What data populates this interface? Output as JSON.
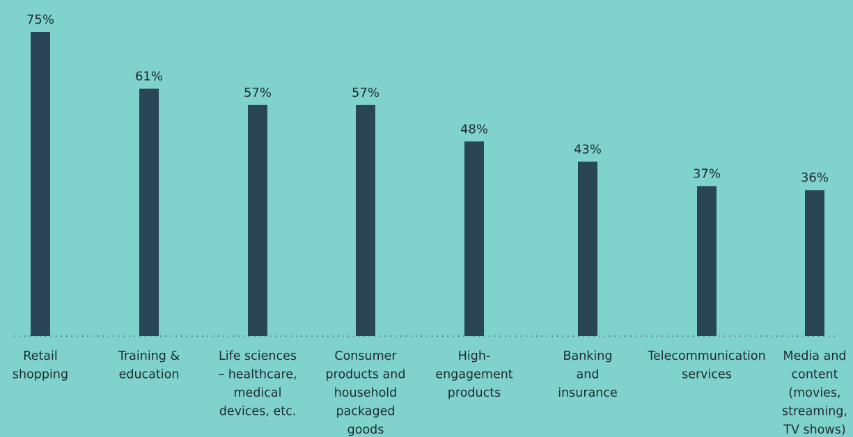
{
  "colors": {
    "background": "#80D3CD",
    "bar": "#2A4555",
    "text": "#1E2A30"
  },
  "chart_data": {
    "type": "bar",
    "title": "",
    "xlabel": "",
    "ylabel": "",
    "ylim": [
      0,
      75
    ],
    "grid": false,
    "legend": "none",
    "categories": [
      [
        "Retail",
        "shopping"
      ],
      [
        "Training &",
        "education"
      ],
      [
        "Life sciences",
        "– healthcare,",
        "medical",
        "devices, etc."
      ],
      [
        "Consumer",
        "products and",
        "household",
        "packaged",
        "goods"
      ],
      [
        "High-",
        "engagement",
        "products"
      ],
      [
        "Banking",
        "and",
        "insurance"
      ],
      [
        "Telecommunication",
        "services"
      ],
      [
        "Media and",
        "content",
        "(movies,",
        "streaming,",
        "TV shows)"
      ]
    ],
    "values": [
      75,
      61,
      57,
      57,
      48,
      43,
      37,
      36
    ],
    "value_labels": [
      "75%",
      "61%",
      "57%",
      "57%",
      "48%",
      "43%",
      "37%",
      "36%"
    ]
  }
}
